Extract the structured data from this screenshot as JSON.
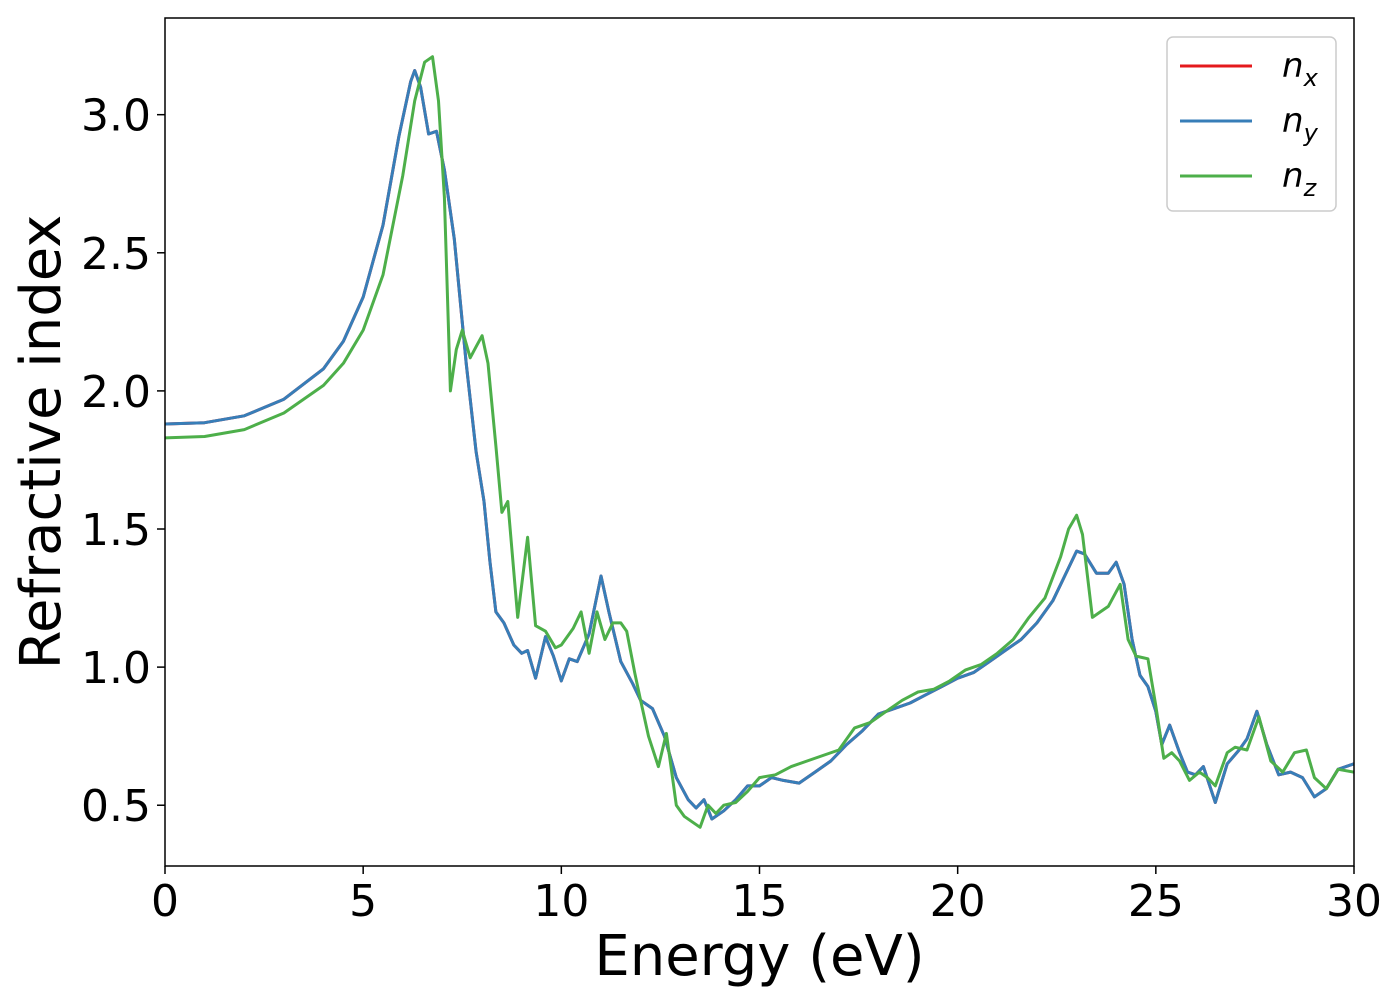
{
  "chart_data": {
    "type": "line",
    "title": "",
    "xlabel": "Energy (eV)",
    "ylabel": "Refractive index",
    "xlim": [
      0,
      30
    ],
    "ylim": [
      0.28,
      3.35
    ],
    "xticks": [
      0,
      5,
      10,
      15,
      20,
      25,
      30
    ],
    "xtick_labels": [
      "0",
      "5",
      "10",
      "15",
      "20",
      "25",
      "30"
    ],
    "yticks": [
      0.5,
      1.0,
      1.5,
      2.0,
      2.5,
      3.0
    ],
    "ytick_labels": [
      "0.5",
      "1.0",
      "1.5",
      "2.0",
      "2.5",
      "3.0"
    ],
    "grid": false,
    "legend_position": "top-right",
    "series": [
      {
        "name": "n_x",
        "label_main": "n",
        "label_sub": "x",
        "color": "#e41a1c",
        "points": [
          [
            0,
            1.88
          ],
          [
            1,
            1.885
          ],
          [
            2,
            1.91
          ],
          [
            3,
            1.97
          ],
          [
            4,
            2.08
          ],
          [
            4.5,
            2.18
          ],
          [
            5,
            2.34
          ],
          [
            5.5,
            2.6
          ],
          [
            5.9,
            2.92
          ],
          [
            6.2,
            3.12
          ],
          [
            6.3,
            3.16
          ],
          [
            6.45,
            3.1
          ],
          [
            6.65,
            2.93
          ],
          [
            6.85,
            2.94
          ],
          [
            7.05,
            2.8
          ],
          [
            7.3,
            2.55
          ],
          [
            7.6,
            2.1
          ],
          [
            7.85,
            1.78
          ],
          [
            8.05,
            1.6
          ],
          [
            8.2,
            1.38
          ],
          [
            8.35,
            1.2
          ],
          [
            8.55,
            1.16
          ],
          [
            8.8,
            1.08
          ],
          [
            9.0,
            1.05
          ],
          [
            9.15,
            1.06
          ],
          [
            9.35,
            0.96
          ],
          [
            9.6,
            1.11
          ],
          [
            9.8,
            1.04
          ],
          [
            10.0,
            0.95
          ],
          [
            10.2,
            1.03
          ],
          [
            10.4,
            1.02
          ],
          [
            10.7,
            1.12
          ],
          [
            11.0,
            1.33
          ],
          [
            11.2,
            1.2
          ],
          [
            11.5,
            1.02
          ],
          [
            11.8,
            0.94
          ],
          [
            12.0,
            0.88
          ],
          [
            12.3,
            0.85
          ],
          [
            12.6,
            0.75
          ],
          [
            12.9,
            0.6
          ],
          [
            13.2,
            0.52
          ],
          [
            13.4,
            0.49
          ],
          [
            13.6,
            0.52
          ],
          [
            13.8,
            0.45
          ],
          [
            14.1,
            0.48
          ],
          [
            14.4,
            0.52
          ],
          [
            14.7,
            0.57
          ],
          [
            15,
            0.57
          ],
          [
            15.3,
            0.6
          ],
          [
            15.6,
            0.59
          ],
          [
            16,
            0.58
          ],
          [
            16.4,
            0.62
          ],
          [
            16.8,
            0.66
          ],
          [
            17.2,
            0.72
          ],
          [
            17.6,
            0.77
          ],
          [
            18,
            0.83
          ],
          [
            18.4,
            0.85
          ],
          [
            18.8,
            0.87
          ],
          [
            19.2,
            0.9
          ],
          [
            19.6,
            0.93
          ],
          [
            20,
            0.96
          ],
          [
            20.4,
            0.98
          ],
          [
            20.8,
            1.02
          ],
          [
            21.2,
            1.06
          ],
          [
            21.6,
            1.1
          ],
          [
            22,
            1.16
          ],
          [
            22.4,
            1.24
          ],
          [
            22.7,
            1.33
          ],
          [
            23.0,
            1.42
          ],
          [
            23.2,
            1.41
          ],
          [
            23.5,
            1.34
          ],
          [
            23.8,
            1.34
          ],
          [
            24.0,
            1.38
          ],
          [
            24.2,
            1.3
          ],
          [
            24.4,
            1.1
          ],
          [
            24.6,
            0.97
          ],
          [
            24.8,
            0.93
          ],
          [
            25.0,
            0.84
          ],
          [
            25.15,
            0.72
          ],
          [
            25.35,
            0.79
          ],
          [
            25.6,
            0.69
          ],
          [
            25.8,
            0.62
          ],
          [
            26.0,
            0.61
          ],
          [
            26.2,
            0.64
          ],
          [
            26.5,
            0.51
          ],
          [
            26.8,
            0.65
          ],
          [
            27.1,
            0.7
          ],
          [
            27.3,
            0.74
          ],
          [
            27.55,
            0.84
          ],
          [
            27.8,
            0.72
          ],
          [
            28.1,
            0.61
          ],
          [
            28.4,
            0.62
          ],
          [
            28.7,
            0.6
          ],
          [
            29.0,
            0.53
          ],
          [
            29.3,
            0.56
          ],
          [
            29.6,
            0.63
          ],
          [
            30,
            0.65
          ]
        ]
      },
      {
        "name": "n_y",
        "label_main": "n",
        "label_sub": "y",
        "color": "#377eb8",
        "points": [
          [
            0,
            1.88
          ],
          [
            1,
            1.885
          ],
          [
            2,
            1.91
          ],
          [
            3,
            1.97
          ],
          [
            4,
            2.08
          ],
          [
            4.5,
            2.18
          ],
          [
            5,
            2.34
          ],
          [
            5.5,
            2.6
          ],
          [
            5.9,
            2.92
          ],
          [
            6.2,
            3.12
          ],
          [
            6.3,
            3.16
          ],
          [
            6.45,
            3.1
          ],
          [
            6.65,
            2.93
          ],
          [
            6.85,
            2.94
          ],
          [
            7.05,
            2.8
          ],
          [
            7.3,
            2.55
          ],
          [
            7.6,
            2.1
          ],
          [
            7.85,
            1.78
          ],
          [
            8.05,
            1.6
          ],
          [
            8.2,
            1.38
          ],
          [
            8.35,
            1.2
          ],
          [
            8.55,
            1.16
          ],
          [
            8.8,
            1.08
          ],
          [
            9.0,
            1.05
          ],
          [
            9.15,
            1.06
          ],
          [
            9.35,
            0.96
          ],
          [
            9.6,
            1.11
          ],
          [
            9.8,
            1.04
          ],
          [
            10.0,
            0.95
          ],
          [
            10.2,
            1.03
          ],
          [
            10.4,
            1.02
          ],
          [
            10.7,
            1.12
          ],
          [
            11.0,
            1.33
          ],
          [
            11.2,
            1.2
          ],
          [
            11.5,
            1.02
          ],
          [
            11.8,
            0.94
          ],
          [
            12.0,
            0.88
          ],
          [
            12.3,
            0.85
          ],
          [
            12.6,
            0.75
          ],
          [
            12.9,
            0.6
          ],
          [
            13.2,
            0.52
          ],
          [
            13.4,
            0.49
          ],
          [
            13.6,
            0.52
          ],
          [
            13.8,
            0.45
          ],
          [
            14.1,
            0.48
          ],
          [
            14.4,
            0.52
          ],
          [
            14.7,
            0.57
          ],
          [
            15,
            0.57
          ],
          [
            15.3,
            0.6
          ],
          [
            15.6,
            0.59
          ],
          [
            16,
            0.58
          ],
          [
            16.4,
            0.62
          ],
          [
            16.8,
            0.66
          ],
          [
            17.2,
            0.72
          ],
          [
            17.6,
            0.77
          ],
          [
            18,
            0.83
          ],
          [
            18.4,
            0.85
          ],
          [
            18.8,
            0.87
          ],
          [
            19.2,
            0.9
          ],
          [
            19.6,
            0.93
          ],
          [
            20,
            0.96
          ],
          [
            20.4,
            0.98
          ],
          [
            20.8,
            1.02
          ],
          [
            21.2,
            1.06
          ],
          [
            21.6,
            1.1
          ],
          [
            22,
            1.16
          ],
          [
            22.4,
            1.24
          ],
          [
            22.7,
            1.33
          ],
          [
            23.0,
            1.42
          ],
          [
            23.2,
            1.41
          ],
          [
            23.5,
            1.34
          ],
          [
            23.8,
            1.34
          ],
          [
            24.0,
            1.38
          ],
          [
            24.2,
            1.3
          ],
          [
            24.4,
            1.1
          ],
          [
            24.6,
            0.97
          ],
          [
            24.8,
            0.93
          ],
          [
            25.0,
            0.84
          ],
          [
            25.15,
            0.72
          ],
          [
            25.35,
            0.79
          ],
          [
            25.6,
            0.69
          ],
          [
            25.8,
            0.62
          ],
          [
            26.0,
            0.61
          ],
          [
            26.2,
            0.64
          ],
          [
            26.5,
            0.51
          ],
          [
            26.8,
            0.65
          ],
          [
            27.1,
            0.7
          ],
          [
            27.3,
            0.74
          ],
          [
            27.55,
            0.84
          ],
          [
            27.8,
            0.72
          ],
          [
            28.1,
            0.61
          ],
          [
            28.4,
            0.62
          ],
          [
            28.7,
            0.6
          ],
          [
            29.0,
            0.53
          ],
          [
            29.3,
            0.56
          ],
          [
            29.6,
            0.63
          ],
          [
            30,
            0.65
          ]
        ]
      },
      {
        "name": "n_z",
        "label_main": "n",
        "label_sub": "z",
        "color": "#4daf4a",
        "points": [
          [
            0,
            1.83
          ],
          [
            1,
            1.835
          ],
          [
            2,
            1.86
          ],
          [
            3,
            1.92
          ],
          [
            4,
            2.02
          ],
          [
            4.5,
            2.1
          ],
          [
            5,
            2.22
          ],
          [
            5.5,
            2.42
          ],
          [
            6.0,
            2.78
          ],
          [
            6.3,
            3.05
          ],
          [
            6.55,
            3.19
          ],
          [
            6.75,
            3.21
          ],
          [
            6.9,
            3.05
          ],
          [
            7.05,
            2.7
          ],
          [
            7.2,
            2.0
          ],
          [
            7.35,
            2.15
          ],
          [
            7.5,
            2.22
          ],
          [
            7.7,
            2.12
          ],
          [
            7.85,
            2.16
          ],
          [
            8.0,
            2.2
          ],
          [
            8.15,
            2.1
          ],
          [
            8.35,
            1.8
          ],
          [
            8.5,
            1.56
          ],
          [
            8.65,
            1.6
          ],
          [
            8.9,
            1.18
          ],
          [
            9.15,
            1.47
          ],
          [
            9.35,
            1.15
          ],
          [
            9.6,
            1.13
          ],
          [
            9.85,
            1.07
          ],
          [
            10.0,
            1.08
          ],
          [
            10.3,
            1.14
          ],
          [
            10.5,
            1.2
          ],
          [
            10.7,
            1.05
          ],
          [
            10.9,
            1.2
          ],
          [
            11.1,
            1.1
          ],
          [
            11.3,
            1.16
          ],
          [
            11.5,
            1.16
          ],
          [
            11.65,
            1.13
          ],
          [
            11.85,
            0.98
          ],
          [
            12.0,
            0.88
          ],
          [
            12.2,
            0.75
          ],
          [
            12.45,
            0.64
          ],
          [
            12.65,
            0.76
          ],
          [
            12.9,
            0.5
          ],
          [
            13.1,
            0.46
          ],
          [
            13.3,
            0.44
          ],
          [
            13.5,
            0.42
          ],
          [
            13.7,
            0.5
          ],
          [
            13.9,
            0.47
          ],
          [
            14.1,
            0.5
          ],
          [
            14.4,
            0.51
          ],
          [
            14.7,
            0.55
          ],
          [
            15,
            0.6
          ],
          [
            15.4,
            0.61
          ],
          [
            15.8,
            0.64
          ],
          [
            16.2,
            0.66
          ],
          [
            16.6,
            0.68
          ],
          [
            17,
            0.7
          ],
          [
            17.4,
            0.78
          ],
          [
            17.8,
            0.8
          ],
          [
            18.2,
            0.84
          ],
          [
            18.6,
            0.88
          ],
          [
            19,
            0.91
          ],
          [
            19.4,
            0.92
          ],
          [
            19.8,
            0.95
          ],
          [
            20.2,
            0.99
          ],
          [
            20.6,
            1.01
          ],
          [
            21,
            1.05
          ],
          [
            21.4,
            1.1
          ],
          [
            21.8,
            1.18
          ],
          [
            22.2,
            1.25
          ],
          [
            22.6,
            1.4
          ],
          [
            22.8,
            1.5
          ],
          [
            23.0,
            1.55
          ],
          [
            23.15,
            1.48
          ],
          [
            23.4,
            1.18
          ],
          [
            23.6,
            1.2
          ],
          [
            23.8,
            1.22
          ],
          [
            24.1,
            1.3
          ],
          [
            24.3,
            1.1
          ],
          [
            24.5,
            1.04
          ],
          [
            24.8,
            1.03
          ],
          [
            25.0,
            0.86
          ],
          [
            25.2,
            0.67
          ],
          [
            25.4,
            0.69
          ],
          [
            25.6,
            0.66
          ],
          [
            25.85,
            0.59
          ],
          [
            26.1,
            0.62
          ],
          [
            26.3,
            0.6
          ],
          [
            26.5,
            0.57
          ],
          [
            26.8,
            0.69
          ],
          [
            27.0,
            0.71
          ],
          [
            27.3,
            0.7
          ],
          [
            27.6,
            0.82
          ],
          [
            27.9,
            0.66
          ],
          [
            28.2,
            0.62
          ],
          [
            28.5,
            0.69
          ],
          [
            28.8,
            0.7
          ],
          [
            29.0,
            0.6
          ],
          [
            29.3,
            0.56
          ],
          [
            29.6,
            0.63
          ],
          [
            30,
            0.62
          ]
        ]
      }
    ]
  }
}
